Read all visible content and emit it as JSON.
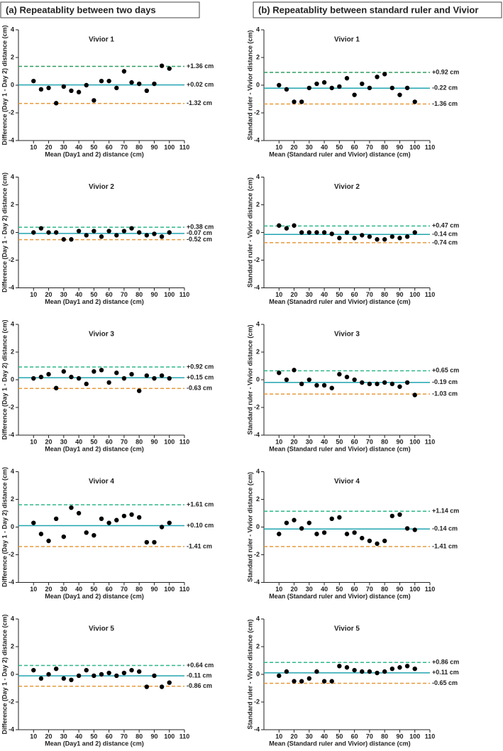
{
  "column_titles": [
    "(a) Repeatablity between two days",
    "(b) Repeatablity between standard ruler and Vivior"
  ],
  "chart_data": [
    {
      "type": "scatter",
      "title": "Vivior 1",
      "x_label": "Mean (Day1 and 2) distance (cm)",
      "y_label": "Difference (Day 1 - Day 2) distance (cm)",
      "color": "#000000",
      "x": [
        10,
        15,
        20,
        25,
        30,
        35,
        40,
        45,
        50,
        55,
        60,
        65,
        70,
        75,
        80,
        85,
        90,
        95,
        100
      ],
      "values": [
        0.3,
        -0.3,
        -0.2,
        -1.3,
        -0.1,
        -0.4,
        -0.5,
        0,
        -1.1,
        0.3,
        0.3,
        -0.2,
        1.0,
        0.2,
        0.1,
        -0.4,
        0.1,
        1.4,
        1.2
      ],
      "xlim": [
        0,
        110
      ],
      "ylim": [
        -4,
        4
      ],
      "xticks": [
        10,
        20,
        30,
        40,
        50,
        60,
        70,
        80,
        90,
        100,
        110
      ],
      "yticks": [
        -4,
        -2,
        0,
        2,
        4
      ],
      "lines": [
        {
          "value": 1.36,
          "label": "+1.36 cm",
          "color": "#2e9e5e",
          "style": "dashed"
        },
        {
          "value": 0.02,
          "label": "+0.02 cm",
          "color": "#22a5b0",
          "style": "solid"
        },
        {
          "value": -1.32,
          "label": "-1.32 cm",
          "color": "#e79a3c",
          "style": "dashed"
        }
      ]
    },
    {
      "type": "scatter",
      "title": "Vivior 2",
      "x_label": "Mean (Day1 and 2) distance (cm)",
      "y_label": "Difference (Day 1 - Day 2) distance (cm)",
      "color": "#000000",
      "x": [
        10,
        15,
        20,
        25,
        30,
        35,
        40,
        45,
        50,
        55,
        60,
        65,
        70,
        75,
        80,
        85,
        90,
        95,
        100
      ],
      "values": [
        0,
        0.3,
        0,
        0,
        -0.5,
        -0.5,
        0.1,
        -0.2,
        0.1,
        -0.3,
        0.1,
        -0.2,
        0.1,
        0.3,
        0,
        -0.2,
        -0.1,
        -0.3,
        0
      ],
      "xlim": [
        0,
        110
      ],
      "ylim": [
        -4,
        4
      ],
      "xticks": [
        10,
        20,
        30,
        40,
        50,
        60,
        70,
        80,
        90,
        100,
        110
      ],
      "yticks": [
        -4,
        -2,
        0,
        2,
        4
      ],
      "lines": [
        {
          "value": 0.38,
          "label": "+0.38 cm",
          "color": "#2eb88a",
          "style": "dashed"
        },
        {
          "value": -0.07,
          "label": "-0.07 cm",
          "color": "#22a5b0",
          "style": "solid"
        },
        {
          "value": -0.52,
          "label": "-0.52 cm",
          "color": "#e79a3c",
          "style": "dashed"
        }
      ]
    },
    {
      "type": "scatter",
      "title": "Vivior 3",
      "x_label": "Mean (Day1 and 2) distance (cm)",
      "y_label": "Difference (Day 1 - Day 2) distance (cm)",
      "color": "#000000",
      "x": [
        10,
        15,
        20,
        25,
        30,
        35,
        40,
        45,
        50,
        55,
        60,
        65,
        70,
        75,
        80,
        85,
        90,
        95,
        100
      ],
      "values": [
        0.1,
        0.2,
        0.4,
        -0.6,
        0.6,
        0.2,
        0.1,
        -0.3,
        0.6,
        0.7,
        -0.2,
        0.5,
        0.1,
        0.4,
        -0.8,
        0.3,
        0.1,
        0.3,
        0.1
      ],
      "xlim": [
        0,
        110
      ],
      "ylim": [
        -4,
        4
      ],
      "xticks": [
        10,
        20,
        30,
        40,
        50,
        60,
        70,
        80,
        90,
        100,
        110
      ],
      "yticks": [
        -4,
        -2,
        0,
        2,
        4
      ],
      "lines": [
        {
          "value": 0.92,
          "label": "+0.92 cm",
          "color": "#2eb88a",
          "style": "dashed"
        },
        {
          "value": 0.15,
          "label": "+0.15 cm",
          "color": "#22a5b0",
          "style": "solid"
        },
        {
          "value": -0.63,
          "label": "-0.63 cm",
          "color": "#e79a3c",
          "style": "dashed"
        }
      ]
    },
    {
      "type": "scatter",
      "title": "Vivior 4",
      "x_label": "Mean (Day1 and 2) distance (cm)",
      "y_label": "Difference (Day 1 - Day 2) distance (cm)",
      "color": "#000000",
      "x": [
        10,
        15,
        20,
        25,
        30,
        35,
        40,
        45,
        50,
        55,
        60,
        65,
        70,
        75,
        80,
        85,
        90,
        95,
        100
      ],
      "values": [
        0.3,
        -0.5,
        -1.0,
        0.6,
        -0.7,
        1.4,
        1.0,
        -0.4,
        -0.6,
        0.6,
        0.3,
        0.5,
        0.8,
        0.9,
        0.7,
        -1.1,
        -1.1,
        0,
        0.3
      ],
      "xlim": [
        0,
        110
      ],
      "ylim": [
        -4,
        4
      ],
      "xticks": [
        10,
        20,
        30,
        40,
        50,
        60,
        70,
        80,
        90,
        100,
        110
      ],
      "yticks": [
        -4,
        -2,
        0,
        2,
        4
      ],
      "lines": [
        {
          "value": 1.61,
          "label": "+1.61 cm",
          "color": "#2eb88a",
          "style": "dashed"
        },
        {
          "value": 0.1,
          "label": "+0.10 cm",
          "color": "#22a5b0",
          "style": "solid"
        },
        {
          "value": -1.41,
          "label": "-1.41 cm",
          "color": "#e79a3c",
          "style": "dashed"
        }
      ]
    },
    {
      "type": "scatter",
      "title": "Vivior 5",
      "x_label": "Mean (Day1 and 2) distance (cm)",
      "y_label": "Difference (Day 1 - Day 2) distance (cm)",
      "color": "#000000",
      "x": [
        10,
        15,
        20,
        25,
        30,
        35,
        40,
        45,
        50,
        55,
        60,
        65,
        70,
        75,
        80,
        85,
        90,
        95,
        100
      ],
      "values": [
        0.3,
        -0.3,
        0,
        0.4,
        -0.3,
        -0.4,
        -0.1,
        0.3,
        -0.1,
        0,
        0.1,
        -0.1,
        0.1,
        0.3,
        0.2,
        -0.9,
        -0.1,
        -0.9,
        -0.6
      ],
      "xlim": [
        0,
        110
      ],
      "ylim": [
        -4,
        4
      ],
      "xticks": [
        10,
        20,
        30,
        40,
        50,
        60,
        70,
        80,
        90,
        100,
        110
      ],
      "yticks": [
        -4,
        -2,
        0,
        2,
        4
      ],
      "lines": [
        {
          "value": 0.64,
          "label": "+0.64 cm",
          "color": "#2eb88a",
          "style": "dashed"
        },
        {
          "value": -0.11,
          "label": "-0.11 cm",
          "color": "#22a5b0",
          "style": "solid"
        },
        {
          "value": -0.86,
          "label": "-0.86 cm",
          "color": "#e79a3c",
          "style": "dashed"
        }
      ]
    },
    {
      "type": "scatter",
      "title": "Vivior 1",
      "x_label": "Mean (Standard ruler and Vivior) distance (cm)",
      "y_label": "Standard ruler - Vivior distance (cm)",
      "color": "#000000",
      "x": [
        10,
        15,
        20,
        25,
        30,
        35,
        40,
        45,
        50,
        55,
        60,
        65,
        70,
        75,
        80,
        85,
        90,
        95,
        100
      ],
      "values": [
        0,
        -0.3,
        -1.2,
        -1.2,
        -0.2,
        0.1,
        0.2,
        -0.2,
        -0.1,
        0.5,
        -0.7,
        0.1,
        -0.2,
        0.6,
        0.8,
        -0.2,
        -0.7,
        -0.2,
        -1.2
      ],
      "xlim": [
        0,
        110
      ],
      "ylim": [
        -4,
        4
      ],
      "xticks": [
        10,
        20,
        30,
        40,
        50,
        60,
        70,
        80,
        90,
        100,
        110
      ],
      "yticks": [
        -4,
        -2,
        0,
        2,
        4
      ],
      "lines": [
        {
          "value": 0.92,
          "label": "+0.92 cm",
          "color": "#2e9e5e",
          "style": "dashed"
        },
        {
          "value": -0.22,
          "label": "-0.22 cm",
          "color": "#22a5b0",
          "style": "solid"
        },
        {
          "value": -1.36,
          "label": "-1.36 cm",
          "color": "#e79a3c",
          "style": "dashed"
        }
      ]
    },
    {
      "type": "scatter",
      "title": "Vivior 2",
      "x_label": "Mean (Stanadrd ruler and Vivior) distance (cm)",
      "y_label": "Standard ruler - Vivior distance (cm)",
      "color": "#000000",
      "x": [
        10,
        15,
        20,
        25,
        30,
        35,
        40,
        45,
        50,
        55,
        60,
        65,
        70,
        75,
        80,
        85,
        90,
        95,
        100
      ],
      "values": [
        0.5,
        0.3,
        0.5,
        0,
        0,
        0,
        0,
        -0.1,
        -0.4,
        0,
        -0.4,
        -0.2,
        -0.3,
        -0.5,
        -0.5,
        -0.3,
        -0.4,
        -0.3,
        0
      ],
      "xlim": [
        0,
        110
      ],
      "ylim": [
        -4,
        4
      ],
      "xticks": [
        10,
        20,
        30,
        40,
        50,
        60,
        70,
        80,
        90,
        100,
        110
      ],
      "yticks": [
        -4,
        -2,
        0,
        2,
        4
      ],
      "lines": [
        {
          "value": 0.47,
          "label": "+0.47 cm",
          "color": "#2eb88a",
          "style": "dashed"
        },
        {
          "value": -0.14,
          "label": "-0.14 cm",
          "color": "#22a5b0",
          "style": "solid"
        },
        {
          "value": -0.74,
          "label": "-0.74 cm",
          "color": "#e79a3c",
          "style": "dashed"
        }
      ]
    },
    {
      "type": "scatter",
      "title": "Vivior 3",
      "x_label": "Mean (Standard ruler and Vivior) distance (cm)",
      "y_label": "Standard ruler - Vivior distance (cm)",
      "color": "#000000",
      "x": [
        10,
        15,
        20,
        25,
        30,
        35,
        40,
        45,
        50,
        55,
        60,
        65,
        70,
        75,
        80,
        85,
        90,
        95,
        100
      ],
      "values": [
        0.5,
        0,
        0.7,
        -0.3,
        0,
        -0.4,
        -0.4,
        -0.6,
        0.4,
        0.2,
        0,
        -0.2,
        -0.3,
        -0.3,
        -0.2,
        -0.3,
        -0.5,
        -0.2,
        -1.1
      ],
      "xlim": [
        0,
        110
      ],
      "ylim": [
        -4,
        4
      ],
      "xticks": [
        10,
        20,
        30,
        40,
        50,
        60,
        70,
        80,
        90,
        100,
        110
      ],
      "yticks": [
        -4,
        -2,
        0,
        2,
        4
      ],
      "lines": [
        {
          "value": 0.65,
          "label": "+0.65 cm",
          "color": "#2eb88a",
          "style": "dashed"
        },
        {
          "value": -0.19,
          "label": "-0.19 cm",
          "color": "#22a5b0",
          "style": "solid"
        },
        {
          "value": -1.03,
          "label": "-1.03 cm",
          "color": "#e79a3c",
          "style": "dashed"
        }
      ]
    },
    {
      "type": "scatter",
      "title": "Vivior 4",
      "x_label": "Mean (Standard ruler and Vivior) distance (cm)",
      "y_label": "Standard ruler - Vivior distance (cm)",
      "color": "#000000",
      "x": [
        10,
        15,
        20,
        25,
        30,
        35,
        40,
        45,
        50,
        55,
        60,
        65,
        70,
        75,
        80,
        85,
        90,
        95,
        100
      ],
      "values": [
        -0.5,
        0.3,
        0.5,
        -0.1,
        0.3,
        -0.5,
        -0.4,
        0.6,
        0.7,
        -0.5,
        -0.4,
        -0.8,
        -1.0,
        -1.2,
        -1.0,
        0.8,
        0.9,
        -0.1,
        -0.2
      ],
      "xlim": [
        0,
        110
      ],
      "ylim": [
        -4,
        4
      ],
      "xticks": [
        10,
        20,
        30,
        40,
        50,
        60,
        70,
        80,
        90,
        100,
        110
      ],
      "yticks": [
        -4,
        -2,
        0,
        2,
        4
      ],
      "lines": [
        {
          "value": 1.14,
          "label": "+1.14 cm",
          "color": "#2eb88a",
          "style": "dashed"
        },
        {
          "value": -0.14,
          "label": "-0.14 cm",
          "color": "#22a5b0",
          "style": "solid"
        },
        {
          "value": -1.41,
          "label": "-1.41 cm",
          "color": "#e79a3c",
          "style": "dashed"
        }
      ]
    },
    {
      "type": "scatter",
      "title": "Vivior 5",
      "x_label": "Mean (Standard ruler and Vivior) distance (cm)",
      "y_label": "Standard ruler - Vivior distance (cm)",
      "color": "#000000",
      "x": [
        10,
        15,
        20,
        25,
        30,
        35,
        40,
        45,
        50,
        55,
        60,
        65,
        70,
        75,
        80,
        85,
        90,
        95,
        100
      ],
      "values": [
        -0.1,
        0.2,
        -0.5,
        -0.5,
        -0.3,
        0.2,
        -0.5,
        -0.5,
        0.6,
        0.5,
        0.3,
        0.2,
        0.2,
        0.1,
        0.2,
        0.4,
        0.5,
        0.6,
        0.4
      ],
      "xlim": [
        0,
        110
      ],
      "ylim": [
        -4,
        4
      ],
      "xticks": [
        10,
        20,
        30,
        40,
        50,
        60,
        70,
        80,
        90,
        100,
        110
      ],
      "yticks": [
        -4,
        -2,
        0,
        2,
        4
      ],
      "lines": [
        {
          "value": 0.86,
          "label": "+0.86 cm",
          "color": "#2eb88a",
          "style": "dashed"
        },
        {
          "value": 0.11,
          "label": "+0.11 cm",
          "color": "#22a5b0",
          "style": "solid"
        },
        {
          "value": -0.65,
          "label": "-0.65 cm",
          "color": "#e79a3c",
          "style": "dashed"
        }
      ]
    }
  ]
}
